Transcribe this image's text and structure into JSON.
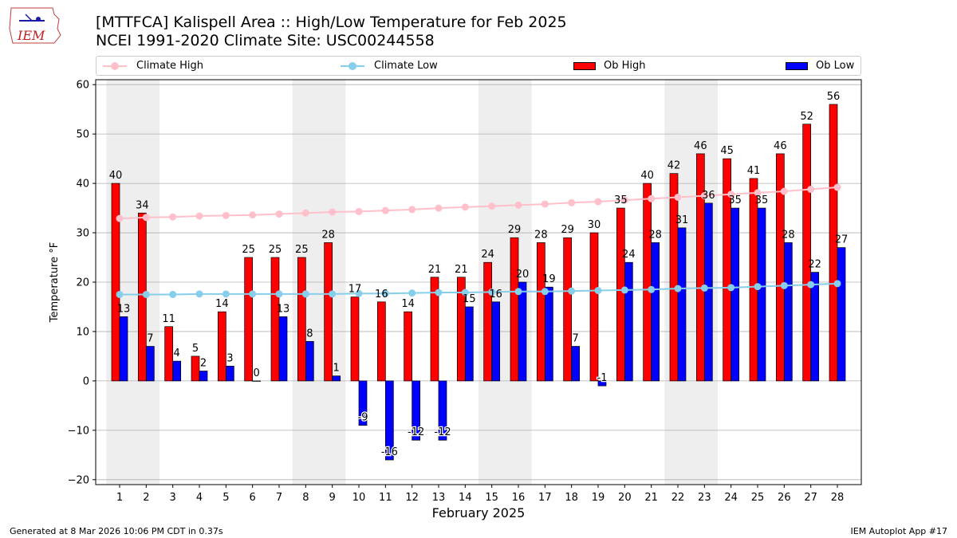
{
  "header": {
    "title_line1": "[MTTFCA] Kalispell Area :: High/Low Temperature for Feb 2025",
    "title_line2": "NCEI 1991-2020 Climate Site: USC00244558",
    "logo_text": "IEM"
  },
  "legend": {
    "climate_high": "Climate High",
    "climate_low": "Climate Low",
    "ob_high": "Ob High",
    "ob_low": "Ob Low"
  },
  "footer": {
    "left": "Generated at 8 Mar 2026 10:06 PM CDT in 0.37s",
    "right": "IEM Autoplot App #17"
  },
  "colors": {
    "ob_high": "#ff0000",
    "ob_low": "#0000ff",
    "climate_high": "#ffc0cb",
    "climate_low": "#87ceeb",
    "weekend_band": "#eeeeee",
    "grid": "#b0b0b0"
  },
  "chart_data": {
    "type": "bar",
    "xlabel": "February 2025",
    "ylabel": "Temperature °F",
    "ylim": [
      -21,
      61
    ],
    "yticks": [
      -20,
      -10,
      0,
      10,
      20,
      30,
      40,
      50,
      60
    ],
    "grid": "horizontal",
    "categories": [
      "1",
      "2",
      "3",
      "4",
      "5",
      "6",
      "7",
      "8",
      "9",
      "10",
      "11",
      "12",
      "13",
      "14",
      "15",
      "16",
      "17",
      "18",
      "19",
      "20",
      "21",
      "22",
      "23",
      "24",
      "25",
      "26",
      "27",
      "28"
    ],
    "shaded_weekend_days": [
      [
        1,
        2
      ],
      [
        8,
        9
      ],
      [
        15,
        16
      ],
      [
        22,
        23
      ]
    ],
    "series": [
      {
        "name": "Ob High",
        "kind": "bar",
        "values": [
          40,
          34,
          11,
          5,
          14,
          25,
          25,
          25,
          28,
          17,
          16,
          14,
          21,
          21,
          24,
          29,
          28,
          29,
          30,
          35,
          40,
          42,
          46,
          45,
          41,
          46,
          52,
          56
        ]
      },
      {
        "name": "Ob Low",
        "kind": "bar",
        "values": [
          13,
          7,
          4,
          2,
          3,
          0,
          13,
          8,
          1,
          -9,
          -16,
          -12,
          -12,
          15,
          16,
          20,
          19,
          7,
          -1,
          24,
          28,
          31,
          36,
          35,
          35,
          28,
          22,
          27
        ]
      },
      {
        "name": "Climate High",
        "kind": "line",
        "values": [
          32.9,
          33.1,
          33.2,
          33.4,
          33.5,
          33.6,
          33.8,
          34.0,
          34.2,
          34.3,
          34.5,
          34.7,
          35.0,
          35.2,
          35.4,
          35.6,
          35.8,
          36.1,
          36.3,
          36.6,
          36.9,
          37.2,
          37.5,
          37.8,
          38.1,
          38.4,
          38.8,
          39.2
        ]
      },
      {
        "name": "Climate Low",
        "kind": "line",
        "values": [
          17.5,
          17.5,
          17.5,
          17.6,
          17.6,
          17.6,
          17.6,
          17.6,
          17.6,
          17.7,
          17.7,
          17.8,
          17.9,
          17.9,
          18.0,
          18.1,
          18.1,
          18.2,
          18.3,
          18.4,
          18.5,
          18.7,
          18.8,
          18.9,
          19.1,
          19.3,
          19.5,
          19.7
        ]
      }
    ]
  }
}
